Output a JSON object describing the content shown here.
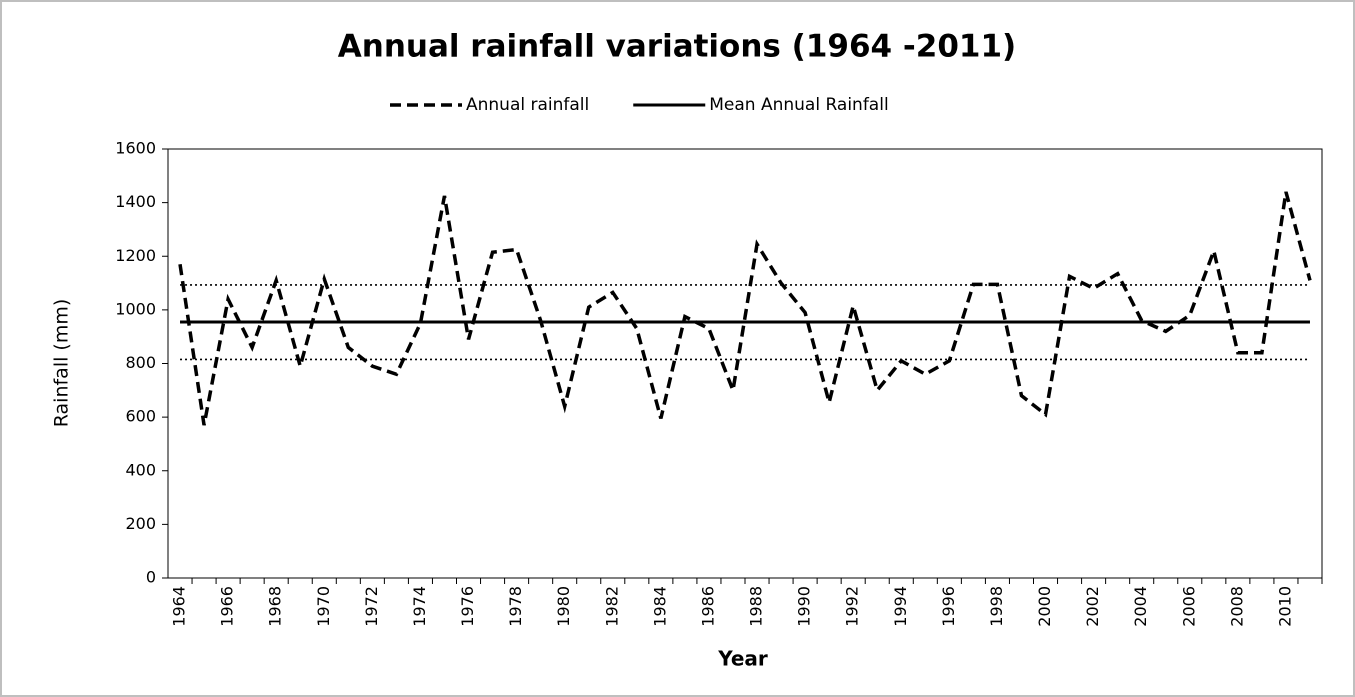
{
  "chart_data": {
    "type": "line",
    "title": "Annual rainfall variations (1964 -2011)",
    "xlabel": "Year",
    "ylabel": "Rainfall (mm)",
    "categories": [
      "1964",
      null,
      "1966",
      null,
      "1968",
      null,
      "1970",
      null,
      "1972",
      null,
      "1974",
      null,
      "1976",
      null,
      "1978",
      null,
      "1980",
      null,
      "1982",
      null,
      "1984",
      null,
      "1986",
      null,
      "1988",
      null,
      "1990",
      null,
      "1992",
      null,
      "1994",
      null,
      "1996",
      null,
      "1998",
      null,
      "2000",
      null,
      "2002",
      null,
      "2004",
      null,
      "2006",
      null,
      "2008",
      null,
      "2010",
      null
    ],
    "series": [
      {
        "name": "Annual rainfall",
        "color": "#000000",
        "line_style": "dashed",
        "values": [
          1170,
          570,
          1040,
          860,
          1110,
          790,
          1115,
          860,
          790,
          760,
          950,
          1425,
          890,
          1215,
          1225,
          960,
          640,
          1010,
          1065,
          930,
          595,
          975,
          930,
          700,
          1245,
          1100,
          990,
          655,
          1015,
          700,
          810,
          760,
          810,
          1095,
          1095,
          680,
          610,
          1125,
          1080,
          1135,
          960,
          920,
          980,
          1220,
          840,
          840,
          1440,
          1110
        ]
      },
      {
        "name": "Mean Annual Rainfall",
        "color": "#000000",
        "line_style": "solid",
        "values": [
          955,
          955,
          955,
          955,
          955,
          955,
          955,
          955,
          955,
          955,
          955,
          955,
          955,
          955,
          955,
          955,
          955,
          955,
          955,
          955,
          955,
          955,
          955,
          955,
          955,
          955,
          955,
          955,
          955,
          955,
          955,
          955,
          955,
          955,
          955,
          955,
          955,
          955,
          955,
          955,
          955,
          955,
          955,
          955,
          955,
          955,
          955,
          955
        ]
      },
      {
        "color": "#000000",
        "line_style": "dotted",
        "values": [
          1093,
          1093,
          1093,
          1093,
          1093,
          1093,
          1093,
          1093,
          1093,
          1093,
          1093,
          1093,
          1093,
          1093,
          1093,
          1093,
          1093,
          1093,
          1093,
          1093,
          1093,
          1093,
          1093,
          1093,
          1093,
          1093,
          1093,
          1093,
          1093,
          1093,
          1093,
          1093,
          1093,
          1093,
          1093,
          1093,
          1093,
          1093,
          1093,
          1093,
          1093,
          1093,
          1093,
          1093,
          1093,
          1093,
          1093,
          1093
        ]
      },
      {
        "color": "#000000",
        "line_style": "dotted",
        "values": [
          815,
          815,
          815,
          815,
          815,
          815,
          815,
          815,
          815,
          815,
          815,
          815,
          815,
          815,
          815,
          815,
          815,
          815,
          815,
          815,
          815,
          815,
          815,
          815,
          815,
          815,
          815,
          815,
          815,
          815,
          815,
          815,
          815,
          815,
          815,
          815,
          815,
          815,
          815,
          815,
          815,
          815,
          815,
          815,
          815,
          815,
          815,
          815
        ]
      }
    ],
    "ylim": [
      0,
      1600
    ],
    "yticks": [
      0,
      200,
      400,
      600,
      800,
      1000,
      1200,
      1400,
      1600
    ],
    "grid": false,
    "legend": "top"
  }
}
